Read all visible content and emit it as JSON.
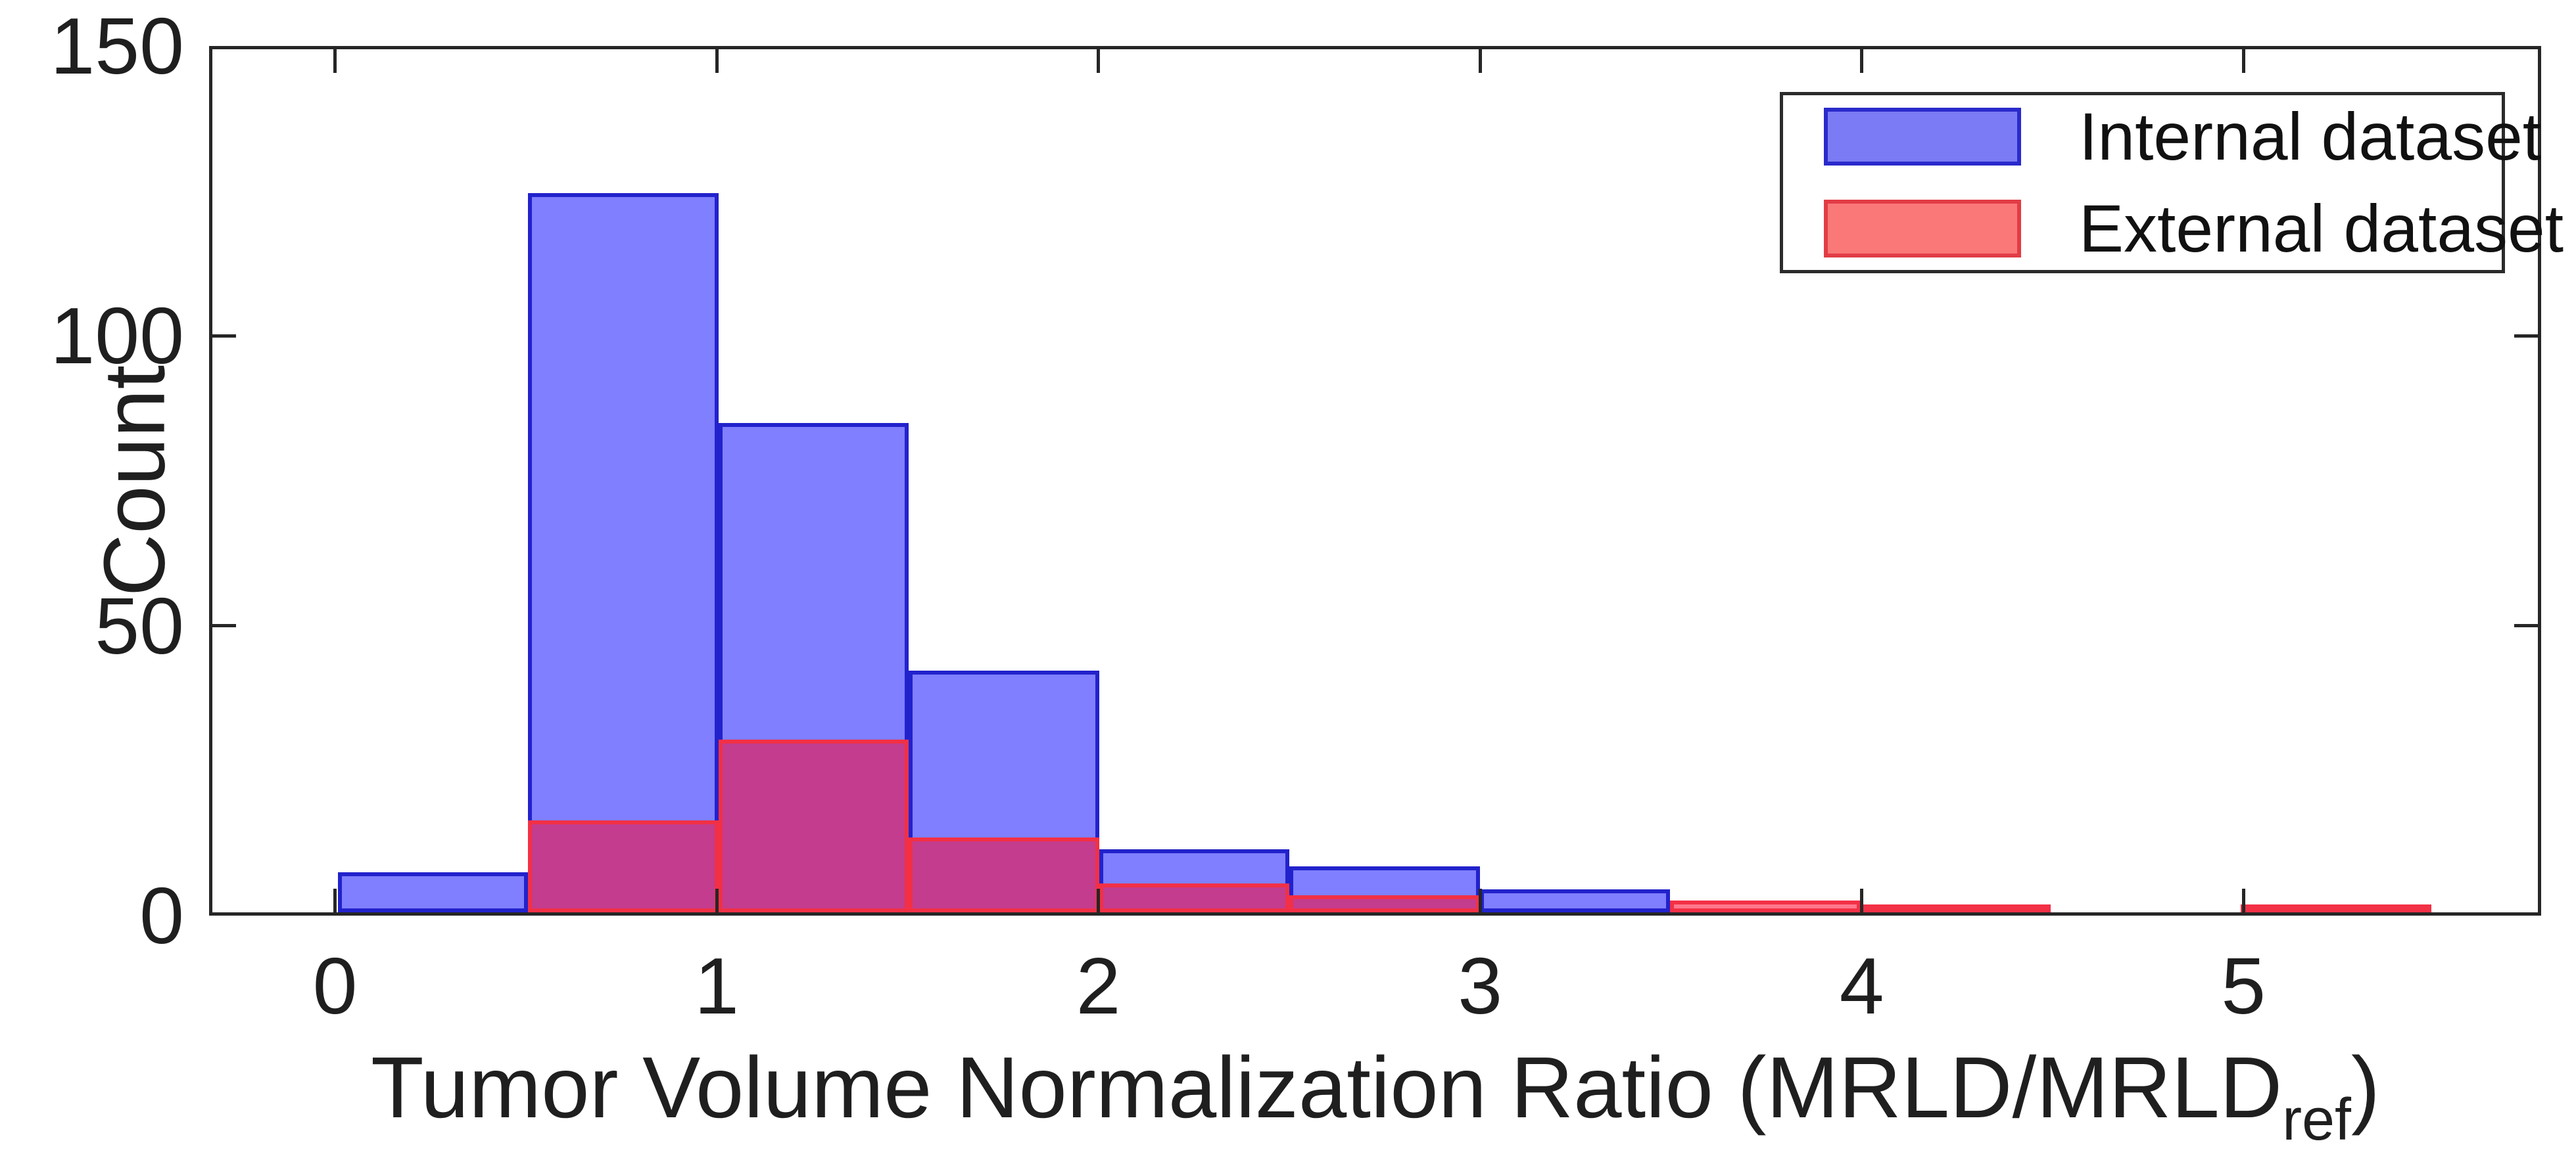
{
  "figure": {
    "background": "#ffffff",
    "axis_color": "#262626",
    "text_color": "#1f1f1f"
  },
  "axes": {
    "ylabel": "Count",
    "xlabel_main": "Tumor Volume Normalization Ratio (MRLD/MRLD",
    "xlabel_sub": "ref",
    "xlabel_end": ")"
  },
  "legend": {
    "items": [
      {
        "label": "Internal dataset",
        "fill": "#7b7bf5",
        "edge": "#2a2acc"
      },
      {
        "label": "External dataset",
        "fill": "#fa7878",
        "edge": "#e23c46"
      }
    ]
  },
  "chart_data": {
    "type": "bar",
    "subtype": "overlaid-histogram",
    "title": "",
    "xlabel": "Tumor Volume Normalization Ratio (MRLD/MRLDref)",
    "ylabel": "Count",
    "bin_width": 0.5,
    "bin_edges": [
      0,
      0.5,
      1,
      1.5,
      2,
      2.5,
      3,
      3.5,
      4,
      4.5,
      5,
      5.5
    ],
    "series": [
      {
        "name": "Internal dataset",
        "fill": "rgba(0,0,255,0.50)",
        "edge": "#2222cc",
        "counts": [
          7,
          125,
          85,
          42,
          11,
          8,
          4,
          0,
          0,
          0,
          0
        ]
      },
      {
        "name": "External dataset",
        "fill": "rgba(255,0,40,0.53)",
        "edge": "#f23046",
        "counts": [
          0,
          16,
          30,
          13,
          5,
          3,
          0,
          2,
          1,
          0,
          1
        ]
      }
    ],
    "xlim": [
      -0.33,
      5.78
    ],
    "ylim": [
      0,
      150
    ],
    "xticks": [
      0,
      1,
      2,
      3,
      4,
      5
    ],
    "yticks": [
      0,
      50,
      100,
      150
    ],
    "grid": false,
    "legend_position": "top-right"
  }
}
